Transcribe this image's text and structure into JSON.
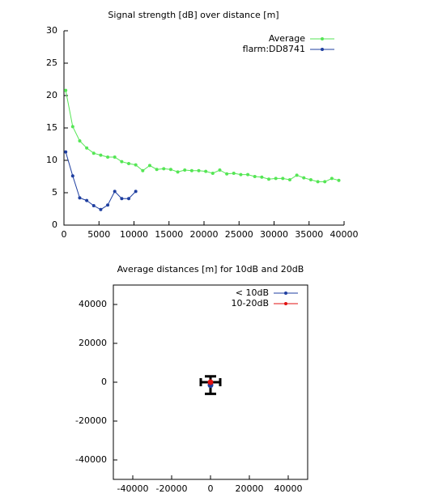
{
  "chart_data": [
    {
      "type": "line",
      "title": "Signal strength [dB] over distance [m]",
      "xlim": [
        0,
        40000
      ],
      "xticks": [
        0,
        5000,
        10000,
        15000,
        20000,
        25000,
        30000,
        35000,
        40000
      ],
      "ylim": [
        0,
        30
      ],
      "yticks": [
        0,
        5,
        10,
        15,
        20,
        25,
        30
      ],
      "frame": "axes",
      "legend": "upper right",
      "series": [
        {
          "name": "Average",
          "color": "#55e655",
          "x": [
            250,
            1250,
            2250,
            3250,
            4250,
            5250,
            6250,
            7250,
            8250,
            9250,
            10250,
            11250,
            12250,
            13250,
            14250,
            15250,
            16250,
            17250,
            18250,
            19250,
            20250,
            21250,
            22250,
            23250,
            24250,
            25250,
            26250,
            27250,
            28250,
            29250,
            30250,
            31250,
            32250,
            33250,
            34250,
            35250,
            36250,
            37250,
            38250,
            39250
          ],
          "values": [
            20.8,
            15.2,
            13,
            11.9,
            11.1,
            10.8,
            10.5,
            10.5,
            9.8,
            9.5,
            9.3,
            8.4,
            9.2,
            8.6,
            8.7,
            8.6,
            8.2,
            8.5,
            8.4,
            8.4,
            8.3,
            8.0,
            8.5,
            7.9,
            8.0,
            7.8,
            7.8,
            7.5,
            7.4,
            7.1,
            7.2,
            7.2,
            7.0,
            7.7,
            7.3,
            7.0,
            6.7,
            6.7,
            7.2,
            6.9
          ]
        },
        {
          "name": "flarm:DD8741",
          "color": "#1f3fa0",
          "x": [
            250,
            1250,
            2250,
            3250,
            4250,
            5250,
            6250,
            7250,
            8250,
            9250,
            10250
          ],
          "values": [
            11.3,
            7.6,
            4.2,
            3.8,
            3.0,
            2.4,
            3.1,
            5.2,
            4.1,
            4.1,
            5.2
          ]
        }
      ]
    },
    {
      "type": "scatter",
      "title": "Average distances [m] for 10dB and 20dB",
      "xlim": [
        -50000,
        50000
      ],
      "xticks": [
        -40000,
        -20000,
        0,
        20000,
        40000
      ],
      "ylim": [
        -50000,
        50000
      ],
      "yticks": [
        -40000,
        -20000,
        0,
        20000,
        40000
      ],
      "frame": "full",
      "legend": "upper right",
      "series": [
        {
          "name": "< 10dB",
          "color": "#1f3fa0",
          "x": [
            0
          ],
          "values": [
            -1500
          ],
          "yerr": [
            4500
          ]
        },
        {
          "name": "10-20dB",
          "color": "#e01010",
          "x": [
            0
          ],
          "values": [
            0
          ],
          "xerr": [
            5000
          ]
        }
      ]
    }
  ]
}
